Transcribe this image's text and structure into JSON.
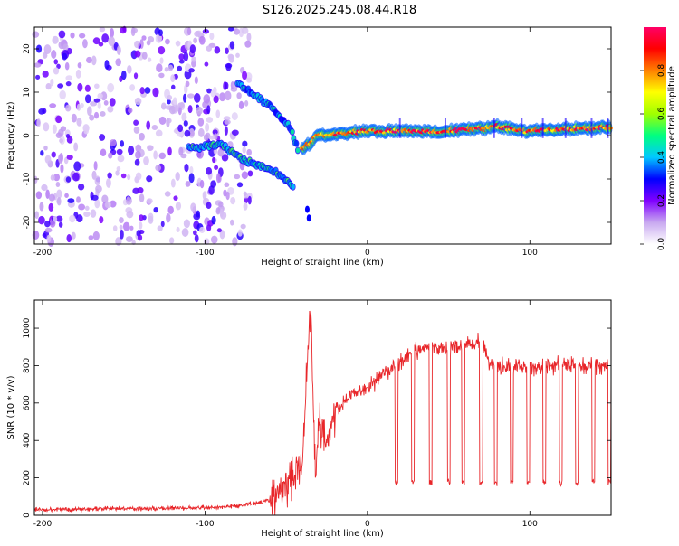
{
  "title": "S126.2025.245.08.44.R18",
  "chart_data": [
    {
      "type": "heatmap",
      "name": "spectrogram",
      "xlabel": "Height of straight line (km)",
      "ylabel": "Frequency (Hz)",
      "xlim": [
        -205,
        150
      ],
      "ylim": [
        -25,
        25
      ],
      "xticks": [
        -200,
        -100,
        0,
        100
      ],
      "yticks": [
        -20,
        -10,
        0,
        10,
        20
      ],
      "colorbar": {
        "label": "Normalized spectral amplitude",
        "range": [
          0,
          1
        ],
        "ticks": [
          "0.0",
          "0.2",
          "0.4",
          "0.6",
          "0.8"
        ],
        "colors": [
          "#ffffff",
          "#c8a8f0",
          "#8000ff",
          "#0000ff",
          "#00c8ff",
          "#00ff80",
          "#a0ff00",
          "#ffff00",
          "#ff8000",
          "#ff0000",
          "#ff0066"
        ]
      },
      "features": [
        {
          "name": "noise-region",
          "x_range": [
            -205,
            -80
          ],
          "y_range": [
            -25,
            25
          ],
          "level": 0.1
        },
        {
          "name": "upper-branch",
          "points": [
            [
              -80,
              12
            ],
            [
              -60,
              7
            ],
            [
              -48,
              2
            ],
            [
              -42,
              -4
            ]
          ],
          "level": 0.3
        },
        {
          "name": "lower-branch",
          "points": [
            [
              -110,
              -3
            ],
            [
              -90,
              -2
            ],
            [
              -75,
              -6
            ],
            [
              -58,
              -8
            ],
            [
              -45,
              -12
            ]
          ],
          "level": 0.35
        },
        {
          "name": "main-signal",
          "points": [
            [
              -40,
              -3
            ],
            [
              -30,
              0
            ],
            [
              0,
              1
            ],
            [
              50,
              1
            ],
            [
              80,
              2
            ],
            [
              100,
              1
            ],
            [
              150,
              2
            ]
          ],
          "level": 0.95
        }
      ]
    },
    {
      "type": "line",
      "name": "snr",
      "xlabel": "Height of straight line (km)",
      "ylabel": "SNR (10 * v/v)",
      "xlim": [
        -205,
        150
      ],
      "ylim": [
        0,
        1150
      ],
      "xticks": [
        -200,
        -100,
        0,
        100
      ],
      "yticks": [
        0,
        200,
        400,
        600,
        800,
        1000
      ],
      "color": "#e8262a",
      "series": [
        {
          "name": "SNR",
          "x": [
            -205,
            -150,
            -100,
            -80,
            -60,
            -50,
            -40,
            -35,
            -32,
            -30,
            -25,
            -20,
            -10,
            0,
            10,
            18,
            30,
            40,
            50,
            60,
            70,
            75,
            80,
            100,
            120,
            150
          ],
          "values": [
            30,
            35,
            40,
            50,
            80,
            150,
            300,
            1150,
            200,
            500,
            400,
            550,
            650,
            680,
            760,
            800,
            880,
            900,
            890,
            920,
            930,
            820,
            800,
            790,
            800,
            800
          ]
        }
      ],
      "dips": {
        "x": [
          18,
          28,
          39,
          50,
          59,
          70,
          79,
          89,
          99,
          109,
          119,
          129,
          139,
          149
        ],
        "value": 175
      }
    }
  ]
}
